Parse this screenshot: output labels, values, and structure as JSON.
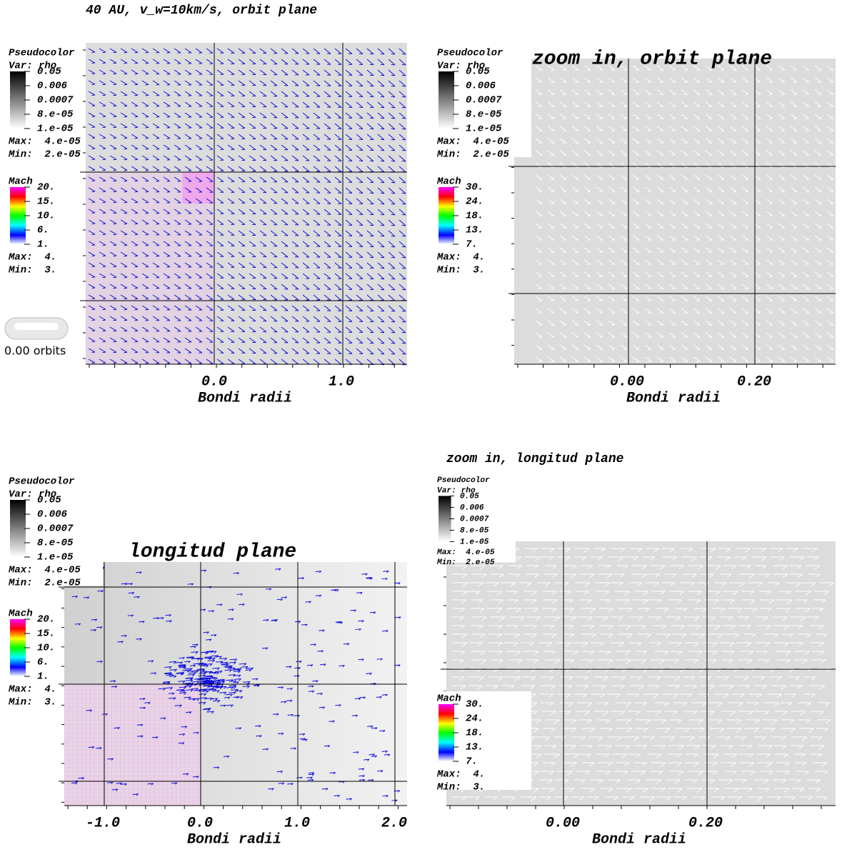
{
  "panels": [
    {
      "title": "40 AU, v_w=10km/s, orbit plane",
      "rho_legend": {
        "title": "Pseudocolor",
        "var": "Var: rho",
        "labels": [
          "0.05",
          "0.006",
          "0.0007",
          "8.e-05",
          "1.e-05"
        ],
        "max": "Max:  4.e-05",
        "min": "Min:  2.e-05"
      },
      "mach_legend": {
        "title": "Mach",
        "labels": [
          "20.",
          "15.",
          "10.",
          "6.",
          "1."
        ],
        "max": "Max:  4.",
        "min": "Min:  3."
      },
      "time": "0.00 orbits",
      "xticks": [
        "0.0",
        "1.0"
      ],
      "xlabel": "Bondi radii"
    },
    {
      "title": "zoom in, orbit plane",
      "rho_legend": {
        "title": "Pseudocolor",
        "var": "Var: rho",
        "labels": [
          "0.05",
          "0.006",
          "0.0007",
          "8.e-05",
          "1.e-05"
        ],
        "max": "Max:  4.e-05",
        "min": "Min:  2.e-05"
      },
      "mach_legend": {
        "title": "Mach",
        "labels": [
          "30.",
          "24.",
          "18.",
          "13.",
          "7."
        ],
        "max": "Max:  4.",
        "min": "Min:  3."
      },
      "xticks": [
        "0.00",
        "0.20"
      ],
      "xlabel": "Bondi radii"
    },
    {
      "title": "longitud plane",
      "rho_legend": {
        "title": "Pseudocolor",
        "var": "Var: rho",
        "labels": [
          "0.05",
          "0.006",
          "0.0007",
          "8.e-05",
          "1.e-05"
        ],
        "max": "Max:  4.e-05",
        "min": "Min:  2.e-05"
      },
      "mach_legend": {
        "title": "Mach",
        "labels": [
          "20.",
          "15.",
          "10.",
          "6.",
          "1."
        ],
        "max": "Max:  4.",
        "min": "Min:  3."
      },
      "xticks": [
        "-1.0",
        "0.0",
        "1.0",
        "2.0"
      ],
      "xlabel": "Bondi radii"
    },
    {
      "title": "zoom in, longitud plane",
      "rho_legend": {
        "title": "Pseudocolor",
        "var": "Var: rho",
        "labels": [
          "0.05",
          "0.006",
          "0.0007",
          "8.e-05",
          "1.e-05"
        ],
        "max": "Max:  4.e-05",
        "min": "Min:  2.e-05"
      },
      "mach_legend": {
        "title": "Mach",
        "labels": [
          "30.",
          "24.",
          "18.",
          "13.",
          "7."
        ],
        "max": "Max:  4.",
        "min": "Min:  3."
      },
      "xticks": [
        "0.00",
        "0.20"
      ],
      "xlabel": "Bondi radii"
    }
  ]
}
